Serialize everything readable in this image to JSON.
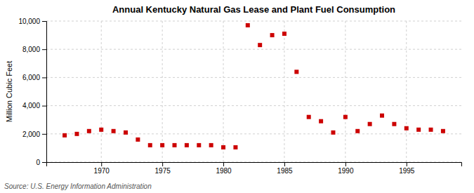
{
  "chart_data": {
    "type": "scatter",
    "title": "Annual Kentucky Natural Gas Lease and Plant Fuel Consumption",
    "y_label": "Million Cubic Feet",
    "source": "Source: U.S. Energy Information Administration",
    "x": [
      1967,
      1968,
      1969,
      1970,
      1971,
      1972,
      1973,
      1974,
      1975,
      1976,
      1977,
      1978,
      1979,
      1980,
      1981,
      1982,
      1983,
      1984,
      1985,
      1986,
      1987,
      1988,
      1989,
      1990,
      1991,
      1992,
      1993,
      1994,
      1995,
      1996,
      1997,
      1998
    ],
    "values": [
      1900,
      2000,
      2200,
      2300,
      2200,
      2100,
      1600,
      1200,
      1200,
      1200,
      1200,
      1200,
      1200,
      1050,
      1050,
      9700,
      8300,
      9000,
      9100,
      6400,
      3200,
      2900,
      2100,
      3200,
      2200,
      2700,
      3300,
      2700,
      2400,
      2300,
      2300,
      2200
    ],
    "color": "#cc0000",
    "marker": "square",
    "xlim": [
      1965.5,
      1999.5
    ],
    "xticks": [
      1970,
      1975,
      1980,
      1985,
      1990,
      1995
    ],
    "ylim": [
      0,
      10000
    ],
    "yticks": [
      0,
      {
        "value": 2000,
        "label": "2,000"
      },
      {
        "value": 4000,
        "label": "4,000"
      },
      {
        "value": 6000,
        "label": "6,000"
      },
      {
        "value": 8000,
        "label": "8,000"
      },
      {
        "value": 10000,
        "label": "10,000"
      }
    ],
    "grid": true
  }
}
